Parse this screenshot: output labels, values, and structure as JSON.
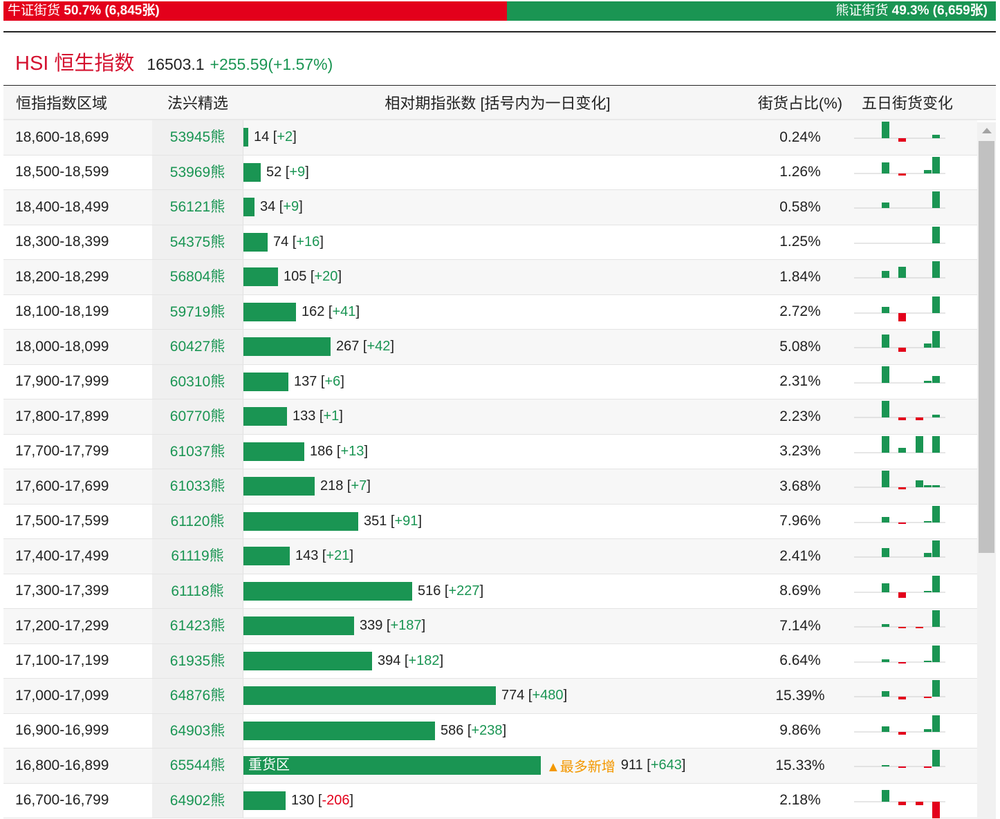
{
  "ratio_bar": {
    "bull_label": "牛证街货",
    "bull_pct": "50.7%",
    "bull_count": "(6,845张)",
    "bull_fraction": 0.507,
    "bear_label": "熊证街货",
    "bear_pct": "49.3%",
    "bear_count": "(6,659张)",
    "bear_fraction": 0.493,
    "bull_color": "#e3001b",
    "bear_color": "#1a9553"
  },
  "index": {
    "name": "HSI 恒生指数",
    "value": "16503.1",
    "change": "+255.59(+1.57%)"
  },
  "table": {
    "headers": {
      "range": "恒指指数区域",
      "pick": "法兴精选",
      "bar": "相对期指张数 [括号内为一日变化]",
      "ratio": "街货占比(%)",
      "trend": "五日街货变化"
    },
    "max_value": 911,
    "rows": [
      {
        "range": "18,600-18,699",
        "pick": "53945熊",
        "value": 14,
        "value_text": "14",
        "change": "+2",
        "ratio": "0.24%",
        "trend": [
          10,
          -2,
          0,
          0,
          2
        ]
      },
      {
        "range": "18,500-18,599",
        "pick": "53969熊",
        "value": 52,
        "value_text": "52",
        "change": "+9",
        "ratio": "1.26%",
        "trend": [
          6,
          -1,
          0,
          2,
          9
        ]
      },
      {
        "range": "18,400-18,499",
        "pick": "56121熊",
        "value": 34,
        "value_text": "34",
        "change": "+9",
        "ratio": "0.58%",
        "trend": [
          3,
          0,
          0,
          0,
          9
        ]
      },
      {
        "range": "18,300-18,399",
        "pick": "54375熊",
        "value": 74,
        "value_text": "74",
        "change": "+16",
        "ratio": "1.25%",
        "trend": [
          0,
          0,
          0,
          0,
          16
        ]
      },
      {
        "range": "18,200-18,299",
        "pick": "56804熊",
        "value": 105,
        "value_text": "105",
        "change": "+20",
        "ratio": "1.84%",
        "trend": [
          8,
          13,
          0,
          0,
          20
        ]
      },
      {
        "range": "18,100-18,199",
        "pick": "59719熊",
        "value": 162,
        "value_text": "162",
        "change": "+41",
        "ratio": "2.72%",
        "trend": [
          16,
          -20,
          0,
          0,
          41
        ]
      },
      {
        "range": "18,000-18,099",
        "pick": "60427熊",
        "value": 267,
        "value_text": "267",
        "change": "+42",
        "ratio": "5.08%",
        "trend": [
          33,
          -10,
          0,
          10,
          42
        ]
      },
      {
        "range": "17,900-17,999",
        "pick": "60310熊",
        "value": 137,
        "value_text": "137",
        "change": "+6",
        "ratio": "2.31%",
        "trend": [
          7,
          0,
          0,
          1,
          3
        ]
      },
      {
        "range": "17,800-17,899",
        "pick": "60770熊",
        "value": 133,
        "value_text": "133",
        "change": "+1",
        "ratio": "2.23%",
        "trend": [
          6,
          -1,
          -1,
          0,
          1
        ]
      },
      {
        "range": "17,700-17,799",
        "pick": "61037熊",
        "value": 186,
        "value_text": "186",
        "change": "+13",
        "ratio": "3.23%",
        "trend": [
          13,
          4,
          13,
          0,
          13
        ]
      },
      {
        "range": "17,600-17,699",
        "pick": "61033熊",
        "value": 218,
        "value_text": "218",
        "change": "+7",
        "ratio": "3.68%",
        "trend": [
          7,
          -1,
          3,
          1,
          1
        ]
      },
      {
        "range": "17,500-17,599",
        "pick": "61120熊",
        "value": 351,
        "value_text": "351",
        "change": "+91",
        "ratio": "7.96%",
        "trend": [
          30,
          -6,
          0,
          4,
          91
        ]
      },
      {
        "range": "17,400-17,499",
        "pick": "61119熊",
        "value": 143,
        "value_text": "143",
        "change": "+21",
        "ratio": "2.41%",
        "trend": [
          11,
          0,
          0,
          5,
          21
        ]
      },
      {
        "range": "17,300-17,399",
        "pick": "61118熊",
        "value": 516,
        "value_text": "516",
        "change": "+227",
        "ratio": "8.69%",
        "trend": [
          125,
          -73,
          0,
          10,
          227
        ]
      },
      {
        "range": "17,200-17,299",
        "pick": "61423熊",
        "value": 339,
        "value_text": "339",
        "change": "+187",
        "ratio": "7.14%",
        "trend": [
          30,
          -4,
          -4,
          0,
          187
        ]
      },
      {
        "range": "17,100-17,199",
        "pick": "61935熊",
        "value": 394,
        "value_text": "394",
        "change": "+182",
        "ratio": "6.64%",
        "trend": [
          30,
          -8,
          0,
          6,
          182
        ]
      },
      {
        "range": "17,000-17,099",
        "pick": "64876熊",
        "value": 774,
        "value_text": "774",
        "change": "+480",
        "ratio": "15.39%",
        "trend": [
          150,
          -80,
          0,
          -10,
          480
        ]
      },
      {
        "range": "16,900-16,999",
        "pick": "64903熊",
        "value": 586,
        "value_text": "586",
        "change": "+238",
        "ratio": "9.86%",
        "trend": [
          80,
          -40,
          0,
          40,
          238
        ]
      },
      {
        "range": "16,800-16,899",
        "pick": "65544熊",
        "value": 911,
        "value_text": "911",
        "change": "+643",
        "ratio": "15.33%",
        "trend": [
          50,
          -20,
          0,
          -10,
          643
        ],
        "bar_label": "重货区",
        "badge": "▲最多新增"
      },
      {
        "range": "16,700-16,799",
        "pick": "64902熊",
        "value": 130,
        "value_text": "130",
        "change": "-206",
        "ratio": "2.18%",
        "trend": [
          150,
          -40,
          -40,
          0,
          -206
        ]
      }
    ]
  },
  "colors": {
    "up": "#1a9553",
    "down": "#e3001b",
    "accent": "#d4112f",
    "highlight": "#f39800"
  }
}
